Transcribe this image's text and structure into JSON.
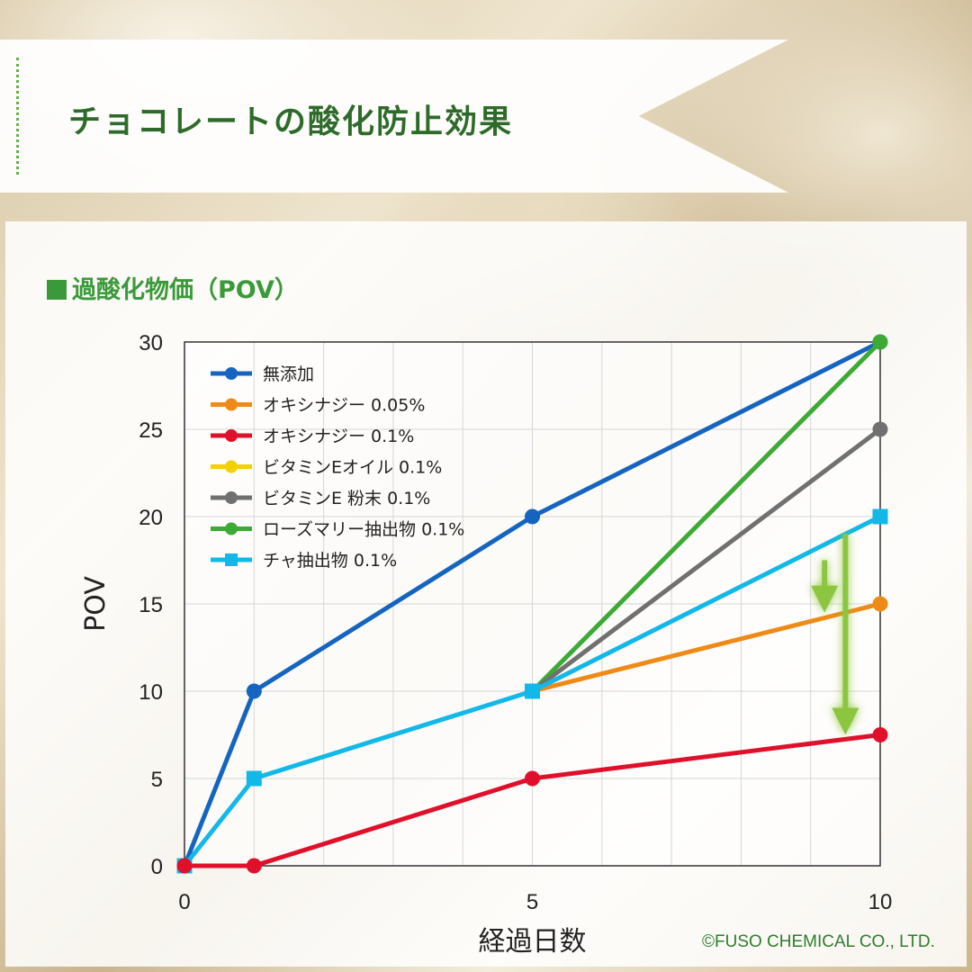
{
  "banner": {
    "title": "チョコレートの酸化防止効果"
  },
  "panel": {
    "heading": "過酸化物価（POV）"
  },
  "copyright": "©FUSO CHEMICAL CO., LTD.",
  "chart_data": {
    "type": "line",
    "title": "",
    "xlabel": "経過日数",
    "ylabel": "POV",
    "xlim": [
      0,
      10
    ],
    "ylim": [
      0,
      30
    ],
    "xticks": [
      0,
      5,
      10
    ],
    "yticks": [
      0,
      5,
      10,
      15,
      20,
      25,
      30
    ],
    "grid": true,
    "legend_position": "top-left",
    "series": [
      {
        "name": "無添加",
        "color": "#1565c0",
        "marker": "circle",
        "x": [
          0,
          1,
          5,
          10
        ],
        "y": [
          0,
          10,
          20,
          30
        ]
      },
      {
        "name": "オキシナジー 0.05%",
        "color": "#ef8a17",
        "marker": "circle",
        "x": [
          5,
          10
        ],
        "y": [
          10,
          15
        ]
      },
      {
        "name": "オキシナジー 0.1%",
        "color": "#e0102a",
        "marker": "circle",
        "x": [
          0,
          1,
          5,
          10
        ],
        "y": [
          0,
          0,
          5,
          7.5
        ]
      },
      {
        "name": "ビタミンEオイル 0.1%",
        "color": "#f5d000",
        "marker": "circle",
        "x": [],
        "y": []
      },
      {
        "name": "ビタミンE 粉末 0.1%",
        "color": "#707070",
        "marker": "circle",
        "x": [
          5,
          10
        ],
        "y": [
          10,
          25
        ]
      },
      {
        "name": "ローズマリー抽出物 0.1%",
        "color": "#3daa35",
        "marker": "circle",
        "x": [
          5,
          10
        ],
        "y": [
          10,
          30
        ]
      },
      {
        "name": "チャ抽出物 0.1%",
        "color": "#12b8e8",
        "marker": "square",
        "x": [
          0,
          1,
          5,
          10
        ],
        "y": [
          0,
          5,
          10,
          20
        ]
      }
    ],
    "annotations": [
      {
        "type": "arrow",
        "color": "#8cc63f",
        "x": 9.2,
        "y_from": 17.5,
        "y_to": 14.5
      },
      {
        "type": "arrow",
        "color": "#8cc63f",
        "x": 9.5,
        "y_from": 19,
        "y_to": 7.5
      }
    ]
  }
}
